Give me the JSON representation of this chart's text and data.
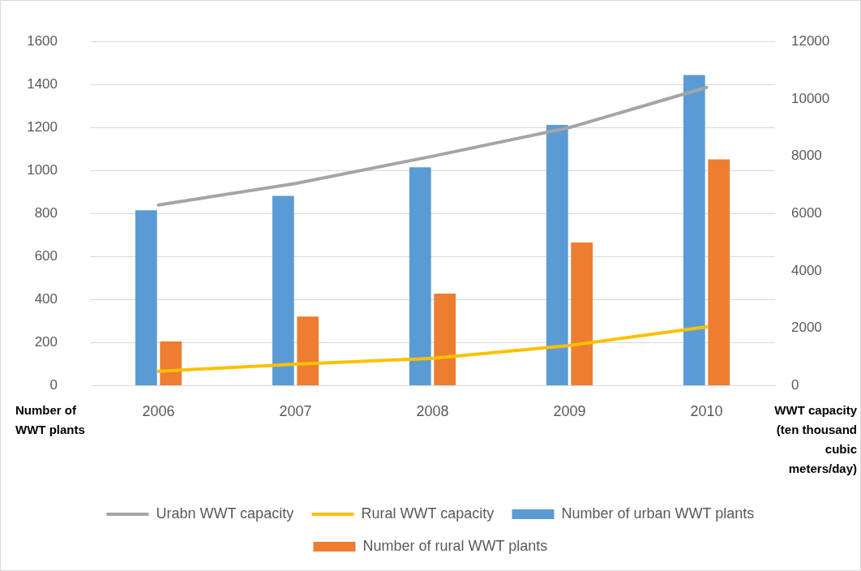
{
  "chart_data": {
    "type": "bar",
    "categories": [
      "2006",
      "2007",
      "2008",
      "2009",
      "2010"
    ],
    "ylabel": "Number of WWT plants",
    "y2label": "WWT capacity (ten thousand cubic meters/day)",
    "series": [
      {
        "name": "Number of urban WWT plants",
        "color": "#5b9bd5",
        "values": [
          815,
          882,
          1015,
          1212,
          1444
        ]
      },
      {
        "name": "Number of rural WWT plants",
        "color": "#ed7d31",
        "values": [
          205,
          321,
          428,
          665,
          1052
        ]
      },
      {
        "name": "Urabn WWT capacity",
        "type": "line",
        "axis": "y2",
        "color": "#a5a5a5",
        "values": [
          6300,
          7050,
          8000,
          9000,
          10400
        ]
      },
      {
        "name": "Rural WWT capacity",
        "type": "line",
        "axis": "y2",
        "color": "#ffc000",
        "values": [
          500,
          750,
          950,
          1400,
          2050
        ]
      }
    ],
    "ylim": [
      0,
      1600
    ],
    "yticks": [
      0,
      200,
      400,
      600,
      800,
      1000,
      1200,
      1400,
      1600
    ],
    "y2lim": [
      0,
      12000
    ],
    "y2ticks": [
      0,
      2000,
      4000,
      6000,
      8000,
      10000,
      12000
    ],
    "grid": "y",
    "legend": "bottom"
  }
}
